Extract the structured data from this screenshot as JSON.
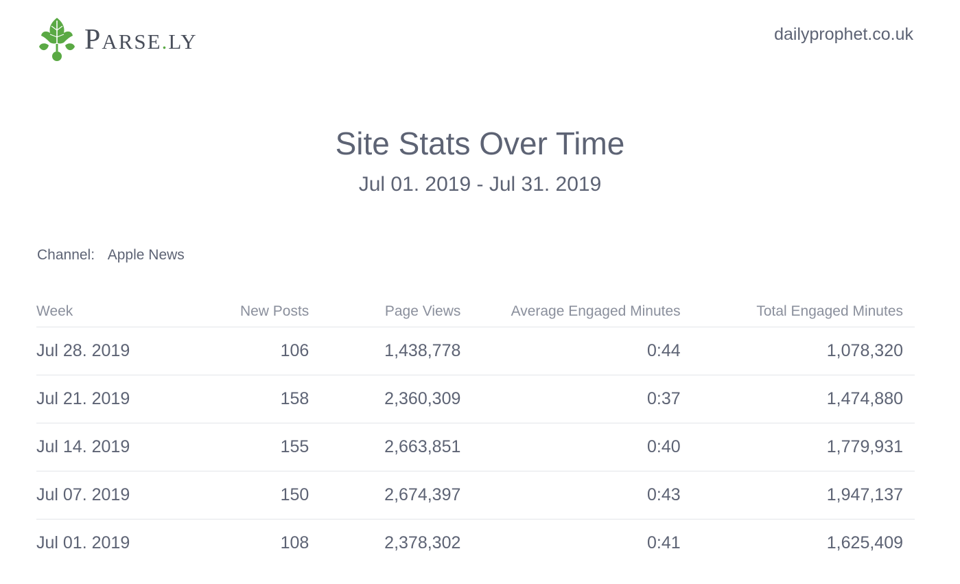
{
  "header": {
    "logo_text_p": "P",
    "logo_text_arse": "ARSE",
    "logo_text_dot": ".",
    "logo_text_ly": "LY",
    "site_domain": "dailyprophet.co.uk"
  },
  "report": {
    "title": "Site Stats Over Time",
    "date_range": "Jul 01. 2019 - Jul 31. 2019",
    "channel_label": "Channel:",
    "channel_value": "Apple News"
  },
  "table": {
    "columns": [
      "Week",
      "New Posts",
      "Page Views",
      "Average Engaged Minutes",
      "Total Engaged Minutes"
    ],
    "rows": [
      [
        "Jul 28. 2019",
        "106",
        "1,438,778",
        "0:44",
        "1,078,320"
      ],
      [
        "Jul 21. 2019",
        "158",
        "2,360,309",
        "0:37",
        "1,474,880"
      ],
      [
        "Jul 14. 2019",
        "155",
        "2,663,851",
        "0:40",
        "1,779,931"
      ],
      [
        "Jul 07. 2019",
        "150",
        "2,674,397",
        "0:43",
        "1,947,137"
      ],
      [
        "Jul 01. 2019",
        "108",
        "2,378,302",
        "0:41",
        "1,625,409"
      ]
    ]
  },
  "colors": {
    "text": "#5d6374",
    "header_text": "#8a8f9c",
    "divider": "#e3e5e9",
    "brand_green": "#5aa944"
  }
}
